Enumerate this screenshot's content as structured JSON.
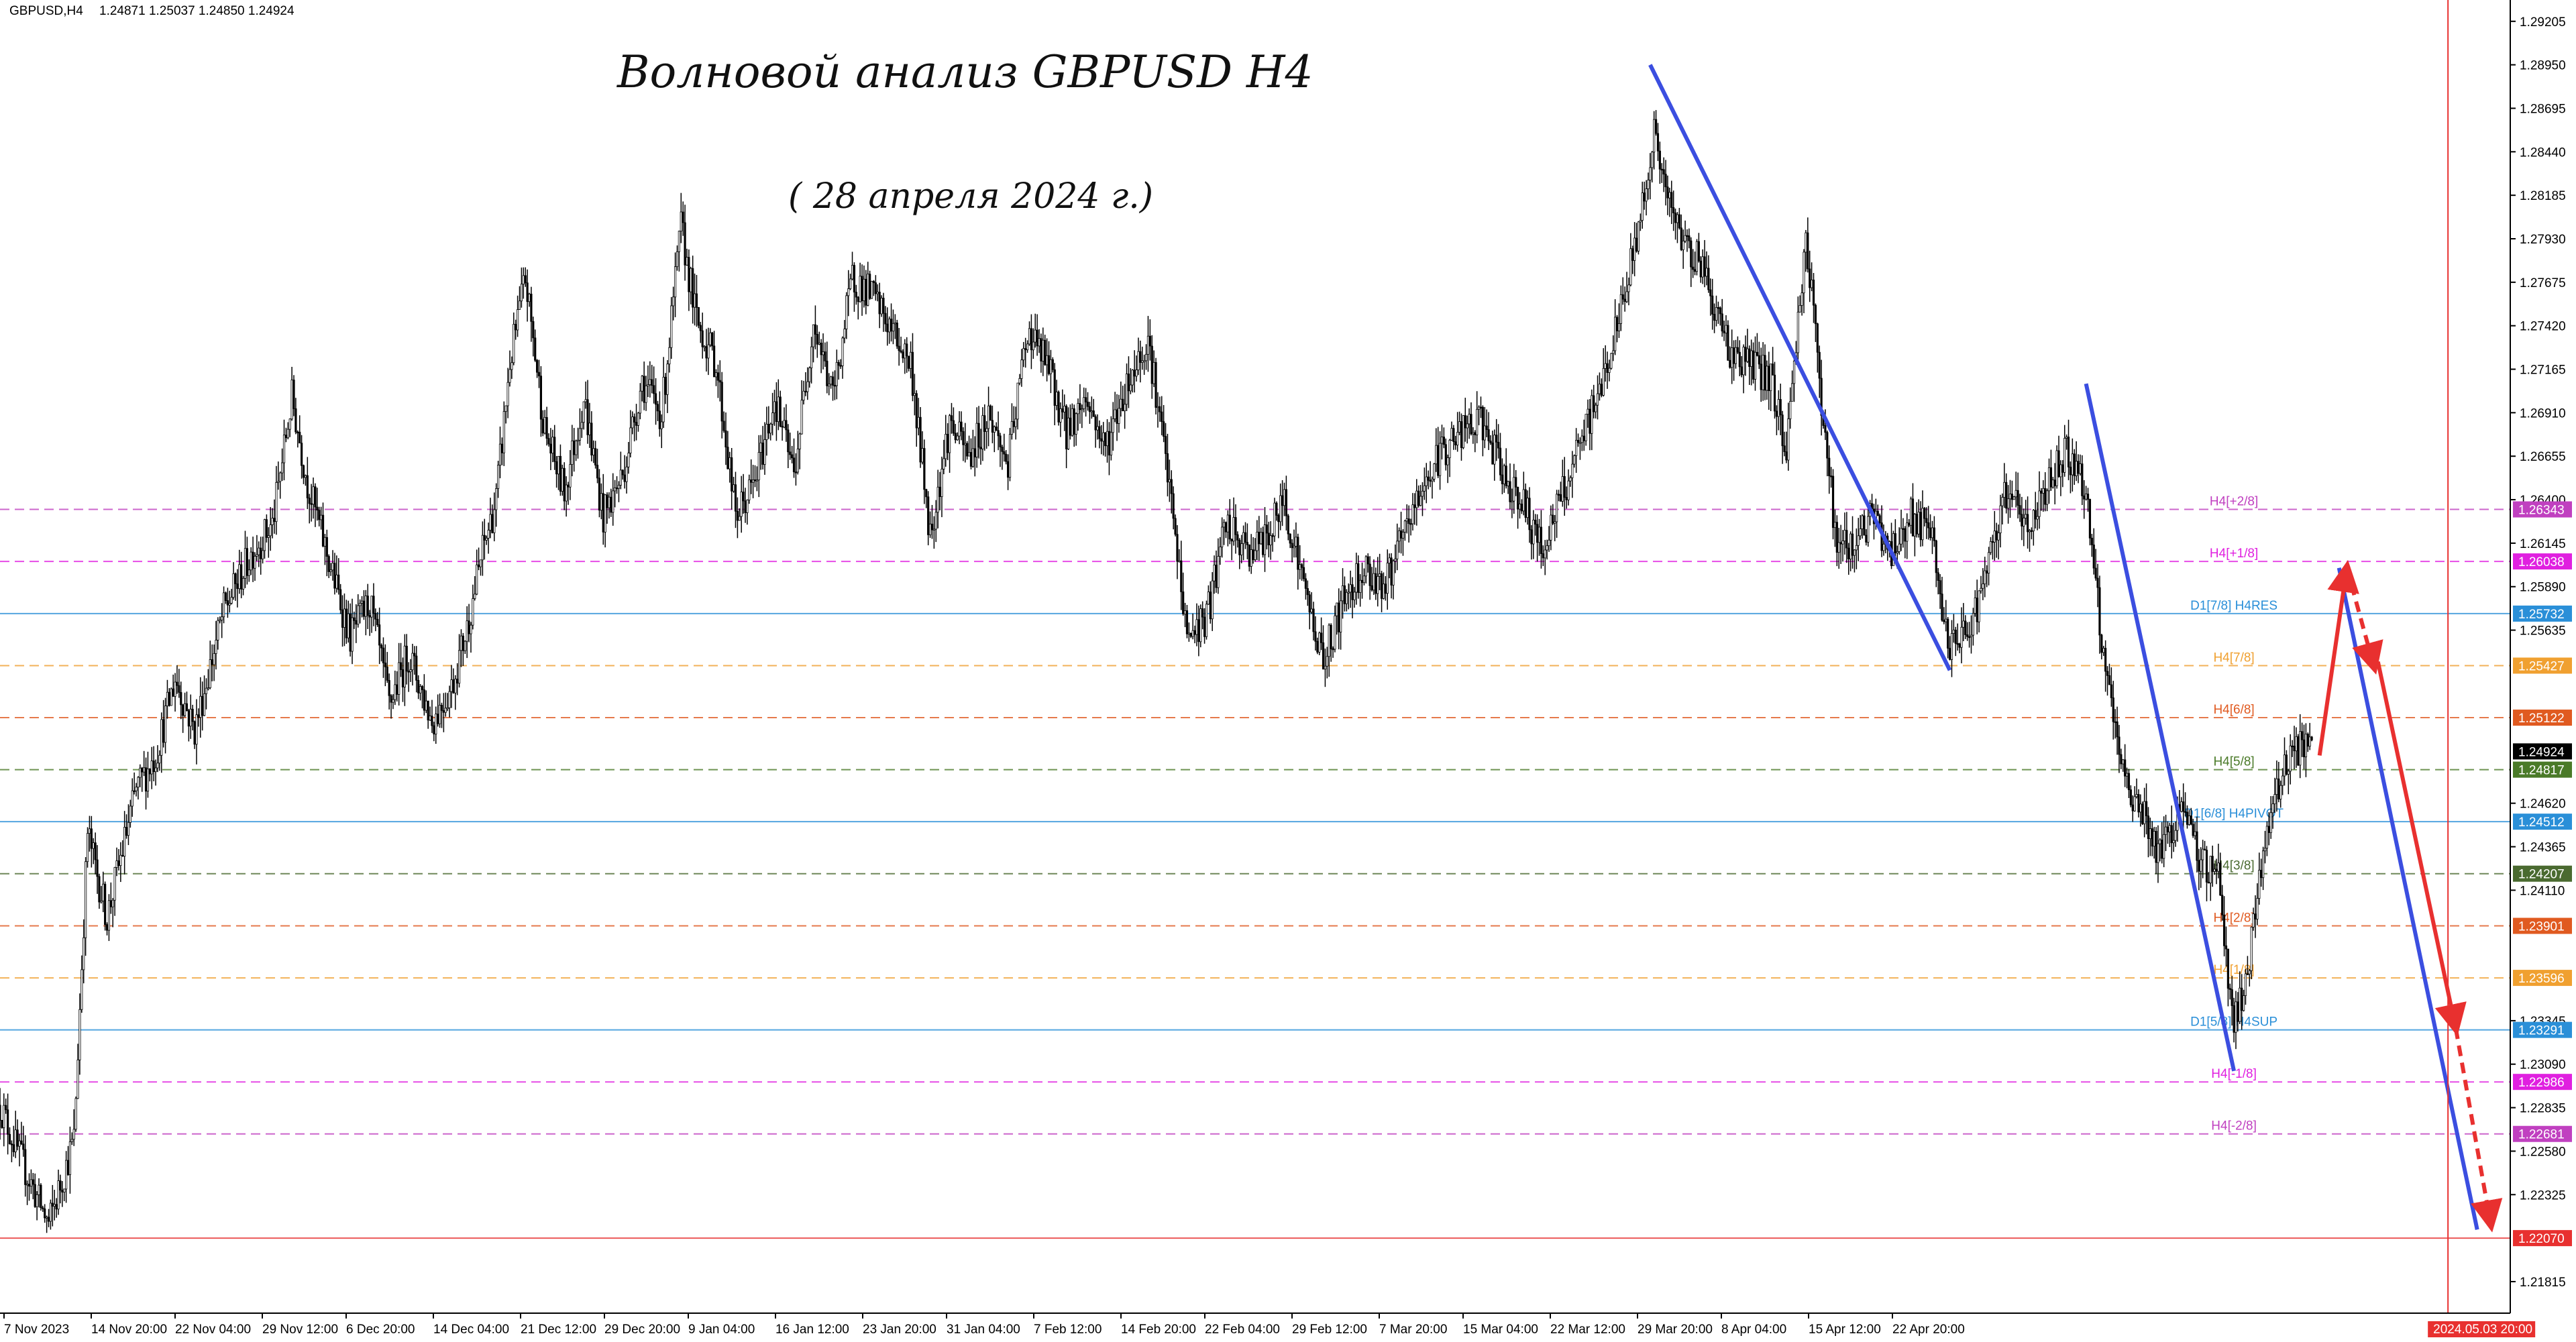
{
  "header": {
    "symbol": "GBPUSD,H4",
    "ohlc": "1.24871 1.25037 1.24850 1.24924"
  },
  "annotations": {
    "title": "Волновой анализ GBPUSD H4",
    "date": "( 28 апреля 2024 г.)"
  },
  "colors": {
    "background": "#ffffff",
    "candle": "#000000",
    "trend_line": "#3b4ee0",
    "forecast_arrow": "#e8302f",
    "time_marker": "#e8302f"
  },
  "chart_data": {
    "type": "candlestick",
    "symbol": "GBPUSD",
    "timeframe": "H4",
    "grid": false,
    "ylim": [
      1.2163,
      1.2933
    ],
    "y_ticks": [
      "1.29205",
      "1.28950",
      "1.28695",
      "1.28440",
      "1.28185",
      "1.27930",
      "1.27675",
      "1.27420",
      "1.27165",
      "1.26910",
      "1.26655",
      "1.26400",
      "1.26145",
      "1.25890",
      "1.25635",
      "1.24620",
      "1.24365",
      "1.24110",
      "1.23345",
      "1.23090",
      "1.22835",
      "1.22580",
      "1.22325",
      "1.21815"
    ],
    "x_ticks": [
      "7 Nov 2023",
      "14 Nov 20:00",
      "22 Nov 04:00",
      "29 Nov 12:00",
      "6 Dec 20:00",
      "14 Dec 04:00",
      "21 Dec 12:00",
      "29 Dec 20:00",
      "9 Jan 04:00",
      "16 Jan 12:00",
      "23 Jan 20:00",
      "31 Jan 04:00",
      "7 Feb 12:00",
      "14 Feb 20:00",
      "22 Feb 04:00",
      "29 Feb 12:00",
      "7 Mar 20:00",
      "15 Mar 04:00",
      "22 Mar 12:00",
      "29 Mar 20:00",
      "8 Apr 04:00",
      "15 Apr 12:00",
      "22 Apr 20:00"
    ],
    "time_marker": "2024.05.03 20:00",
    "current_price": "1.24924",
    "series_path": [
      [
        0,
        1.2285
      ],
      [
        10,
        1.2255
      ],
      [
        25,
        1.2215
      ],
      [
        38,
        1.2265
      ],
      [
        45,
        1.2445
      ],
      [
        55,
        1.2395
      ],
      [
        70,
        1.247
      ],
      [
        80,
        1.249
      ],
      [
        90,
        1.2535
      ],
      [
        100,
        1.2505
      ],
      [
        115,
        1.2575
      ],
      [
        130,
        1.261
      ],
      [
        140,
        1.2625
      ],
      [
        150,
        1.27
      ],
      [
        158,
        1.265
      ],
      [
        170,
        1.26
      ],
      [
        180,
        1.256
      ],
      [
        190,
        1.258
      ],
      [
        200,
        1.252
      ],
      [
        210,
        1.255
      ],
      [
        222,
        1.251
      ],
      [
        232,
        1.253
      ],
      [
        240,
        1.2565
      ],
      [
        248,
        1.261
      ],
      [
        255,
        1.264
      ],
      [
        262,
        1.272
      ],
      [
        270,
        1.277
      ],
      [
        280,
        1.268
      ],
      [
        290,
        1.2645
      ],
      [
        300,
        1.27
      ],
      [
        310,
        1.263
      ],
      [
        320,
        1.2655
      ],
      [
        330,
        1.271
      ],
      [
        340,
        1.269
      ],
      [
        350,
        1.28
      ],
      [
        358,
        1.2745
      ],
      [
        368,
        1.272
      ],
      [
        378,
        1.263
      ],
      [
        388,
        1.265
      ],
      [
        398,
        1.27
      ],
      [
        408,
        1.2655
      ],
      [
        418,
        1.2745
      ],
      [
        428,
        1.27
      ],
      [
        438,
        1.277
      ],
      [
        448,
        1.276
      ],
      [
        458,
        1.274
      ],
      [
        468,
        1.272
      ],
      [
        478,
        1.262
      ],
      [
        488,
        1.2685
      ],
      [
        498,
        1.2665
      ],
      [
        508,
        1.269
      ],
      [
        518,
        1.266
      ],
      [
        528,
        1.274
      ],
      [
        538,
        1.272
      ],
      [
        548,
        1.268
      ],
      [
        558,
        1.27
      ],
      [
        568,
        1.267
      ],
      [
        578,
        1.2705
      ],
      [
        590,
        1.2735
      ],
      [
        600,
        1.2655
      ],
      [
        610,
        1.256
      ],
      [
        620,
        1.257
      ],
      [
        630,
        1.2625
      ],
      [
        640,
        1.261
      ],
      [
        650,
        1.2615
      ],
      [
        660,
        1.264
      ],
      [
        670,
        1.259
      ],
      [
        680,
        1.2545
      ],
      [
        690,
        1.258
      ],
      [
        700,
        1.26
      ],
      [
        712,
        1.259
      ],
      [
        722,
        1.262
      ],
      [
        732,
        1.265
      ],
      [
        742,
        1.267
      ],
      [
        752,
        1.268
      ],
      [
        762,
        1.2685
      ],
      [
        772,
        1.2655
      ],
      [
        782,
        1.264
      ],
      [
        792,
        1.261
      ],
      [
        802,
        1.264
      ],
      [
        812,
        1.267
      ],
      [
        822,
        1.2705
      ],
      [
        832,
        1.2745
      ],
      [
        842,
        1.28
      ],
      [
        850,
        1.2855
      ],
      [
        858,
        1.281
      ],
      [
        866,
        1.279
      ],
      [
        874,
        1.278
      ],
      [
        882,
        1.275
      ],
      [
        890,
        1.2725
      ],
      [
        900,
        1.272
      ],
      [
        910,
        1.271
      ],
      [
        918,
        1.267
      ],
      [
        928,
        1.2795
      ],
      [
        936,
        1.27
      ],
      [
        944,
        1.261
      ],
      [
        952,
        1.2615
      ],
      [
        962,
        1.263
      ],
      [
        972,
        1.261
      ],
      [
        982,
        1.263
      ],
      [
        992,
        1.262
      ],
      [
        1002,
        1.255
      ],
      [
        1012,
        1.2565
      ],
      [
        1022,
        1.26
      ],
      [
        1032,
        1.265
      ],
      [
        1042,
        1.262
      ],
      [
        1052,
        1.265
      ],
      [
        1062,
        1.267
      ],
      [
        1072,
        1.2645
      ],
      [
        1080,
        1.2555
      ],
      [
        1090,
        1.248
      ],
      [
        1100,
        1.246
      ],
      [
        1110,
        1.243
      ],
      [
        1120,
        1.246
      ],
      [
        1130,
        1.243
      ],
      [
        1140,
        1.242
      ],
      [
        1148,
        1.233
      ],
      [
        1156,
        1.237
      ],
      [
        1164,
        1.244
      ],
      [
        1172,
        1.248
      ],
      [
        1180,
        1.2495
      ],
      [
        1188,
        1.2492
      ]
    ],
    "horizontal_levels": [
      {
        "price": "1.26343",
        "label": "H4[+2/8]",
        "color": "#c040c0"
      },
      {
        "price": "1.26038",
        "label": "H4[+1/8]",
        "color": "#e020e0"
      },
      {
        "price": "1.25732",
        "label": "D1[7/8] H4RES",
        "color": "#2a8fd8"
      },
      {
        "price": "1.25427",
        "label": "H4[7/8]",
        "color": "#f0a030"
      },
      {
        "price": "1.25122",
        "label": "H4[6/8]",
        "color": "#e05a20"
      },
      {
        "price": "1.24817",
        "label": "H4[5/8]",
        "color": "#4a7a28"
      },
      {
        "price": "1.24512",
        "label": "D1[6/8] H4PIVOT",
        "color": "#2a8fd8"
      },
      {
        "price": "1.24207",
        "label": "H4[3/8]",
        "color": "#4a6a30"
      },
      {
        "price": "1.23901",
        "label": "H4[2/8]",
        "color": "#e05a20"
      },
      {
        "price": "1.23596",
        "label": "H4[1/8]",
        "color": "#f0a030"
      },
      {
        "price": "1.23291",
        "label": "D1[5/8] H4SUP",
        "color": "#2a8fd8"
      },
      {
        "price": "1.22986",
        "label": "H4[-1/8]",
        "color": "#e020e0"
      },
      {
        "price": "1.22681",
        "label": "H4[-2/8]",
        "color": "#c040c0"
      },
      {
        "price": "1.22070",
        "label": "",
        "color": "#e8302f"
      }
    ],
    "trend_lines": [
      {
        "from": [
          848,
          1.2895
        ],
        "to": [
          1002,
          1.254
        ]
      },
      {
        "from": [
          1072,
          1.2708
        ],
        "to": [
          1148,
          1.2305
        ]
      },
      {
        "from": [
          1202,
          1.26
        ],
        "to": [
          1273,
          1.2212
        ]
      }
    ],
    "forecast_path": [
      {
        "from": [
          1192,
          1.249
        ],
        "to": [
          1206,
          1.26
        ],
        "dashed": false
      },
      {
        "from": [
          1206,
          1.26
        ],
        "to": [
          1220,
          1.2542
        ],
        "dashed": true
      },
      {
        "from": [
          1222,
          1.2545
        ],
        "to": [
          1262,
          1.233
        ],
        "dashed": false
      },
      {
        "from": [
          1262,
          1.233
        ],
        "to": [
          1280,
          1.2215
        ],
        "dashed": true
      }
    ]
  }
}
